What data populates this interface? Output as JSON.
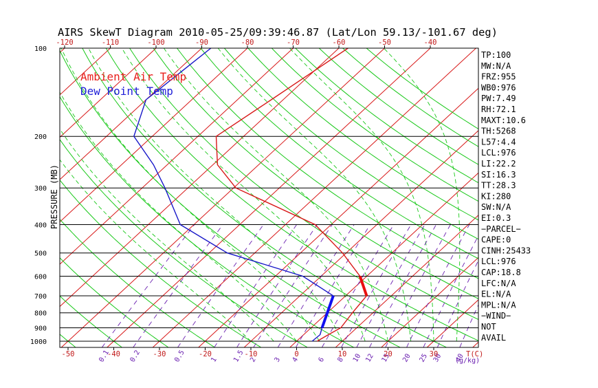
{
  "chart_data": {
    "type": "line",
    "title": "AIRS SkewT Diagram 2010-05-25/09:39:46.87 (Lat/Lon 59.13/-101.67 deg)",
    "ylabel": "PRESSURE (MB)",
    "top_temp_ticks": [
      -120,
      -110,
      -100,
      -90,
      -80,
      -70,
      -60,
      -50,
      -40
    ],
    "bottom_temp_ticks": [
      -50,
      -40,
      -30,
      -20,
      -10,
      0,
      10,
      20,
      30,
      40
    ],
    "bottom_temp_label": "T(C)",
    "pressure_ticks": [
      100,
      200,
      300,
      400,
      500,
      600,
      700,
      800,
      900,
      1000
    ],
    "mixing_ratio_ticks": [
      "0.1",
      "0.2",
      "0.5",
      "1",
      "1.5",
      "2",
      "3",
      "4",
      "6",
      "8",
      "10",
      "12",
      "15",
      "20",
      "25",
      "30",
      "40"
    ],
    "mixing_ratio_label": "(g/kg)",
    "legend": [
      {
        "label": "Ambient Air Temp",
        "color": "#e8201c"
      },
      {
        "label": "Dew Point Temp",
        "color": "#2020d8"
      }
    ],
    "series": [
      {
        "name": "Ambient Air Temp",
        "color": "#d81818",
        "points": [
          [
            100,
            -58
          ],
          [
            150,
            -62.6
          ],
          [
            200,
            -66
          ],
          [
            250,
            -59
          ],
          [
            300,
            -49.5
          ],
          [
            400,
            -23.5
          ],
          [
            500,
            -10.8
          ],
          [
            600,
            -1.5
          ],
          [
            700,
            4.6
          ],
          [
            800,
            5.5
          ],
          [
            900,
            6.5
          ],
          [
            950,
            5.4
          ],
          [
            1000,
            4.5
          ]
        ]
      },
      {
        "name": "Dew Point Temp",
        "color": "#1818c8",
        "points": [
          [
            100,
            -88
          ],
          [
            150,
            -90
          ],
          [
            200,
            -84
          ],
          [
            250,
            -73
          ],
          [
            300,
            -65
          ],
          [
            400,
            -53
          ],
          [
            500,
            -36
          ],
          [
            600,
            -14
          ],
          [
            700,
            -2.7
          ],
          [
            800,
            0
          ],
          [
            900,
            2.4
          ],
          [
            950,
            3.6
          ],
          [
            1000,
            3.4
          ]
        ]
      }
    ],
    "parcel_segments": [
      {
        "name": "temp-bar",
        "color": "#e81010",
        "p_top": 600,
        "p_bottom": 700,
        "t_top": -1.5,
        "t_bottom": 4.6
      },
      {
        "name": "dew-bar",
        "color": "#1010f0",
        "p_top": 700,
        "p_bottom": 900,
        "t_top": -2.7,
        "t_bottom": 2.4
      }
    ]
  },
  "indices": [
    "TP:100",
    "MW:N/A",
    "FRZ:955",
    "WB0:976",
    "PW:7.49",
    "RH:72.1",
    "MAXT:10.6",
    "TH:5268",
    "L57:4.4",
    "LCL:976",
    "LI:22.2",
    "SI:16.3",
    "TT:28.3",
    "KI:280",
    "SW:N/A",
    "EI:0.3",
    "−PARCEL−",
    "CAPE:0",
    "CINH:25433",
    "LCL:976",
    "CAP:18.8",
    "LFC:N/A",
    "EL:N/A",
    "MPL:N/A",
    "−WIND−",
    "NOT",
    "AVAIL"
  ],
  "colors": {
    "isotherm": "#d81818",
    "dry_adiabat": "#18c818",
    "moist_adiabat": "#18c818",
    "mixing_ratio": "#6a1fb0",
    "isobar": "#000000",
    "tick_label_temp": "#c01818",
    "tick_label_mix": "#6a1fb0"
  }
}
